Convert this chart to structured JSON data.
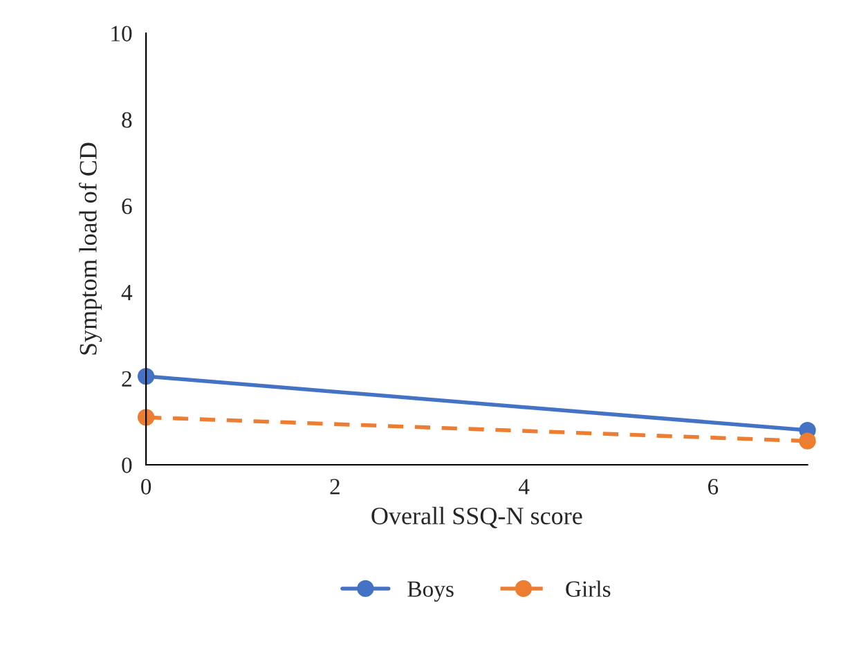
{
  "chart_data": {
    "type": "line",
    "xlabel": "Overall SSQ-N score",
    "ylabel": "Symptom load of CD",
    "x": [
      0,
      7
    ],
    "series": [
      {
        "name": "Boys",
        "color": "#4472c4",
        "values": [
          2.05,
          0.8
        ],
        "line_style": "solid"
      },
      {
        "name": "Girls",
        "color": "#ed7d31",
        "values": [
          1.1,
          0.55
        ],
        "line_style": "dashed"
      }
    ],
    "xlim": [
      0,
      7
    ],
    "xticks": [
      0,
      2,
      4,
      6
    ],
    "ylim": [
      0,
      10
    ],
    "yticks": [
      0,
      2,
      4,
      6,
      8,
      10
    ],
    "marker": "circle",
    "legend": "bottom",
    "grid": false
  }
}
